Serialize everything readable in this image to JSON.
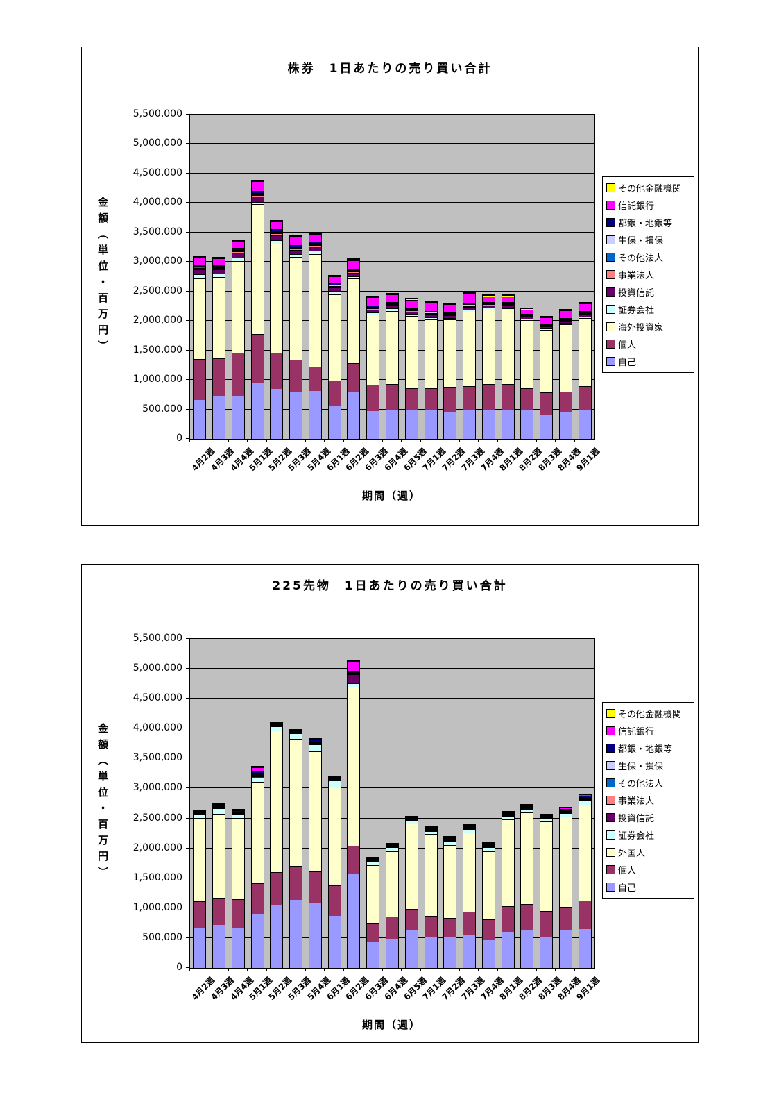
{
  "charts": [
    {
      "title": "株券　1日あたりの売り買い合計",
      "y_axis_title": "金額（単位・百万円）",
      "x_axis_title": "期間（週）",
      "plot_bg": "#c0c0c0",
      "y_tick_labels": [
        "5,500,000",
        "5,000,000",
        "4,500,000",
        "4,000,000",
        "3,500,000",
        "3,000,000",
        "2,500,000",
        "2,000,000",
        "1,500,000",
        "1,000,000",
        "500,000",
        "0"
      ],
      "chart_data": {
        "type": "bar",
        "stacked": true,
        "title": "株券　1日あたりの売り買い合計",
        "xlabel": "期間（週）",
        "ylabel": "金額（単位・百万円）",
        "ylim": [
          0,
          5500000
        ],
        "y_tick_step": 500000,
        "grid": true,
        "legend_position": "right",
        "categories": [
          "4月2週",
          "4月3週",
          "4月4週",
          "5月1週",
          "5月2週",
          "5月3週",
          "5月4週",
          "6月1週",
          "6月2週",
          "6月3週",
          "6月4週",
          "6月5週",
          "7月1週",
          "7月2週",
          "7月3週",
          "7月4週",
          "8月1週",
          "8月2週",
          "8月3週",
          "8月4週",
          "9月1週"
        ],
        "series_bottom_to_top": [
          {
            "name": "自己",
            "color": "#9999FF",
            "values": [
              660000,
              725000,
              730000,
              945000,
              850000,
              795000,
              815000,
              550000,
              800000,
              475000,
              485000,
              480000,
              500000,
              460000,
              500000,
              490000,
              480000,
              490000,
              395000,
              455000,
              480000
            ]
          },
          {
            "name": "個人",
            "color": "#993366",
            "values": [
              695000,
              645000,
              725000,
              835000,
              610000,
              545000,
              415000,
              435000,
              480000,
              445000,
              440000,
              375000,
              365000,
              415000,
              400000,
              435000,
              455000,
              375000,
              395000,
              340000,
              420000
            ]
          },
          {
            "name": "海外投資家",
            "color": "#FFFFCC",
            "values": [
              1365000,
              1370000,
              1560000,
              2200000,
              1855000,
              1740000,
              1905000,
              1470000,
              1440000,
              1190000,
              1245000,
              1225000,
              1165000,
              1145000,
              1255000,
              1270000,
              1250000,
              1150000,
              1055000,
              1145000,
              1145000
            ]
          },
          {
            "name": "証券会社",
            "color": "#CCFFFF",
            "values": [
              75000,
              60000,
              60000,
              40000,
              50000,
              50000,
              60000,
              50000,
              40000,
              35000,
              40000,
              35000,
              35000,
              35000,
              35000,
              30000,
              30000,
              25000,
              25000,
              25000,
              30000
            ]
          },
          {
            "name": "投資信託",
            "color": "#660066",
            "values": [
              80000,
              70000,
              80000,
              90000,
              90000,
              70000,
              70000,
              60000,
              60000,
              50000,
              50000,
              45000,
              45000,
              45000,
              50000,
              40000,
              45000,
              35000,
              35000,
              40000,
              40000
            ]
          },
          {
            "name": "事業法人",
            "color": "#FF8080",
            "values": [
              25000,
              30000,
              20000,
              25000,
              30000,
              25000,
              25000,
              20000,
              20000,
              15000,
              15000,
              15000,
              15000,
              15000,
              15000,
              15000,
              15000,
              10000,
              10000,
              10000,
              10000
            ]
          },
          {
            "name": "その他法人",
            "color": "#0066CC",
            "values": [
              15000,
              10000,
              10000,
              10000,
              10000,
              10000,
              10000,
              10000,
              10000,
              10000,
              10000,
              10000,
              10000,
              10000,
              10000,
              10000,
              10000,
              10000,
              10000,
              10000,
              10000
            ]
          },
          {
            "name": "生保・損保",
            "color": "#CCCCFF",
            "values": [
              20000,
              20000,
              20000,
              20000,
              20000,
              20000,
              20000,
              15000,
              15000,
              15000,
              15000,
              15000,
              15000,
              15000,
              15000,
              15000,
              15000,
              10000,
              10000,
              10000,
              15000
            ]
          },
          {
            "name": "都銀・地銀等",
            "color": "#000080",
            "values": [
              25000,
              30000,
              30000,
              40000,
              40000,
              30000,
              30000,
              25000,
              25000,
              25000,
              25000,
              20000,
              20000,
              20000,
              25000,
              20000,
              20000,
              15000,
              15000,
              15000,
              20000
            ]
          },
          {
            "name": "信託銀行",
            "color": "#FF00FF",
            "values": [
              125000,
              100000,
              120000,
              160000,
              130000,
              140000,
              120000,
              115000,
              140000,
              145000,
              125000,
              140000,
              140000,
              120000,
              170000,
              95000,
              100000,
              75000,
              110000,
              125000,
              125000
            ]
          },
          {
            "name": "その他金融機関",
            "color": "#FFFF00",
            "values": [
              15000,
              15000,
              15000,
              15000,
              15000,
              15000,
              15000,
              15000,
              15000,
              15000,
              15000,
              15000,
              15000,
              15000,
              15000,
              15000,
              15000,
              15000,
              15000,
              15000,
              10000
            ]
          }
        ]
      }
    },
    {
      "title": "225先物　1日あたりの売り買い合計",
      "y_axis_title": "金額（単位・百万円）",
      "x_axis_title": "期間（週）",
      "plot_bg": "#c0c0c0",
      "y_tick_labels": [
        "5,500,000",
        "5,000,000",
        "4,500,000",
        "4,000,000",
        "3,500,000",
        "3,000,000",
        "2,500,000",
        "2,000,000",
        "1,500,000",
        "1,000,000",
        "500,000",
        "0"
      ],
      "chart_data": {
        "type": "bar",
        "stacked": true,
        "title": "225先物　1日あたりの売り買い合計",
        "xlabel": "期間（週）",
        "ylabel": "金額（単位・百万円）",
        "ylim": [
          0,
          5500000
        ],
        "y_tick_step": 500000,
        "grid": true,
        "legend_position": "right",
        "categories": [
          "4月2週",
          "4月3週",
          "4月4週",
          "5月1週",
          "5月2週",
          "5月3週",
          "5月4週",
          "6月1週",
          "6月2週",
          "6月3週",
          "6月4週",
          "6月5週",
          "7月1週",
          "7月2週",
          "7月3週",
          "7月4週",
          "8月1週",
          "8月2週",
          "8月3週",
          "8月4週",
          "9月1週"
        ],
        "series_bottom_to_top": [
          {
            "name": "自己",
            "color": "#9999FF",
            "values": [
              665000,
              720000,
              675000,
              910000,
              1045000,
              1135000,
              1095000,
              875000,
              1575000,
              425000,
              490000,
              635000,
              520000,
              510000,
              540000,
              470000,
              600000,
              635000,
              510000,
              625000,
              655000
            ]
          },
          {
            "name": "個人",
            "color": "#993366",
            "values": [
              450000,
              455000,
              470000,
              500000,
              560000,
              565000,
              520000,
              500000,
              470000,
              335000,
              365000,
              355000,
              355000,
              330000,
              405000,
              340000,
              430000,
              435000,
              440000,
              395000,
              475000
            ]
          },
          {
            "name": "外国人",
            "color": "#FFFFCC",
            "values": [
              1395000,
              1405000,
              1360000,
              1695000,
              2360000,
              2130000,
              2005000,
              1650000,
              2650000,
              960000,
              1090000,
              1420000,
              1360000,
              1210000,
              1315000,
              1140000,
              1450000,
              1530000,
              1500000,
              1510000,
              1600000
            ]
          },
          {
            "name": "証券会社",
            "color": "#CCFFFF",
            "values": [
              70000,
              85000,
              60000,
              80000,
              75000,
              95000,
              120000,
              105000,
              65000,
              60000,
              70000,
              60000,
              55000,
              75000,
              55000,
              70000,
              65000,
              55000,
              50000,
              60000,
              75000
            ]
          },
          {
            "name": "投資信託",
            "color": "#660066",
            "values": [
              5000,
              5000,
              10000,
              20000,
              5000,
              5000,
              10000,
              10000,
              145000,
              10000,
              10000,
              10000,
              10000,
              10000,
              10000,
              10000,
              10000,
              10000,
              10000,
              10000,
              10000
            ]
          },
          {
            "name": "事業法人",
            "color": "#FF8080",
            "values": [
              15000,
              15000,
              15000,
              25000,
              10000,
              10000,
              15000,
              10000,
              25000,
              10000,
              10000,
              10000,
              10000,
              10000,
              10000,
              10000,
              10000,
              15000,
              10000,
              10000,
              15000
            ]
          },
          {
            "name": "その他法人",
            "color": "#0066CC",
            "values": [
              5000,
              5000,
              5000,
              10000,
              5000,
              0,
              10000,
              5000,
              10000,
              5000,
              5000,
              5000,
              5000,
              5000,
              5000,
              5000,
              5000,
              5000,
              5000,
              5000,
              5000
            ]
          },
          {
            "name": "生保・損保",
            "color": "#CCCCFF",
            "values": [
              5000,
              5000,
              10000,
              15000,
              5000,
              0,
              10000,
              10000,
              10000,
              10000,
              10000,
              10000,
              10000,
              10000,
              5000,
              10000,
              5000,
              10000,
              5000,
              10000,
              10000
            ]
          },
          {
            "name": "都銀・地銀等",
            "color": "#000080",
            "values": [
              15000,
              20000,
              25000,
              25000,
              25000,
              15000,
              30000,
              25000,
              20000,
              20000,
              25000,
              25000,
              25000,
              25000,
              25000,
              25000,
              25000,
              25000,
              25000,
              30000,
              30000
            ]
          },
          {
            "name": "信託銀行",
            "color": "#FF00FF",
            "values": [
              0,
              5000,
              5000,
              70000,
              0,
              25000,
              15000,
              5000,
              145000,
              10000,
              0,
              0,
              15000,
              5000,
              5000,
              5000,
              5000,
              5000,
              5000,
              25000,
              30000
            ]
          },
          {
            "name": "その他金融機関",
            "color": "#FFFF00",
            "values": [
              0,
              0,
              0,
              5000,
              0,
              0,
              0,
              0,
              5000,
              0,
              0,
              0,
              0,
              0,
              0,
              0,
              0,
              0,
              0,
              0,
              0
            ]
          }
        ]
      }
    }
  ]
}
